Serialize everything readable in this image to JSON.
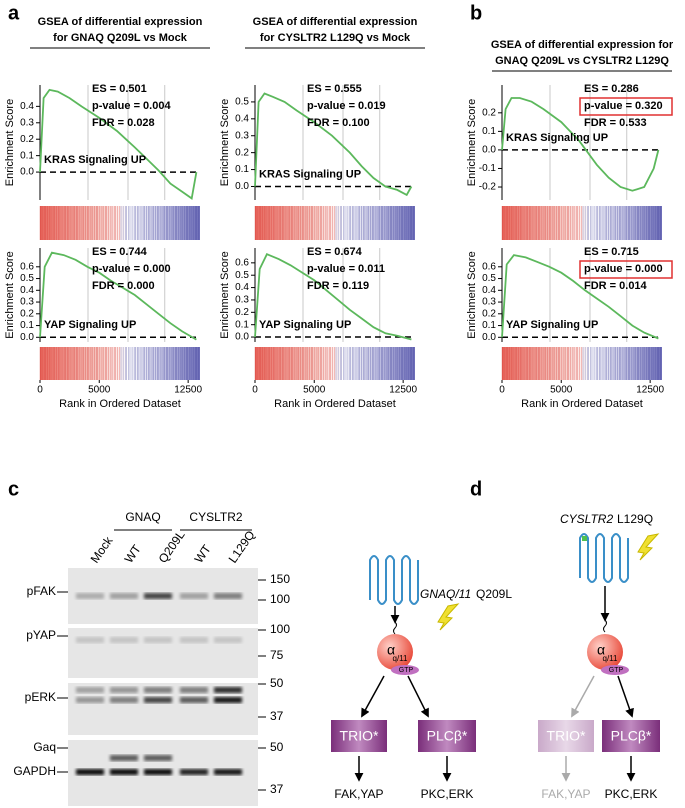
{
  "panel_labels": [
    "a",
    "b",
    "c",
    "d"
  ],
  "chart_data": [
    {
      "type": "line",
      "title": [
        "GSEA of differential expression",
        "for GNAQ Q209L vs Mock"
      ],
      "annotations": [
        "ES = 0.501",
        "p-value = 0.004",
        "FDR = 0.028"
      ],
      "gene_set": "KRAS Signaling UP",
      "y_label": "Enrichment Score",
      "color": "#5cb85c",
      "xlim": [
        0,
        13500
      ],
      "ylim": [
        -0.17,
        0.53
      ],
      "yticks": [
        {
          "value": 0,
          "label": "0.0"
        },
        0.1,
        0.2,
        0.3,
        0.4
      ],
      "x": [
        0,
        300,
        800,
        1500,
        2500,
        3500,
        5000,
        6500,
        8000,
        9000,
        10000,
        11000,
        12000,
        12800,
        13200
      ],
      "values": [
        0,
        0.45,
        0.5,
        0.49,
        0.45,
        0.4,
        0.33,
        0.25,
        0.15,
        0.08,
        0.01,
        -0.07,
        -0.12,
        -0.16,
        0
      ]
    },
    {
      "type": "line",
      "title": [
        "GSEA of differential expression",
        "for CYSLTR2 L129Q vs Mock"
      ],
      "annotations": [
        "ES = 0.555",
        "p-value = 0.019",
        "FDR = 0.100"
      ],
      "gene_set": "KRAS Signaling UP",
      "y_label": "Enrichment Score",
      "color": "#5cb85c",
      "xlim": [
        0,
        13500
      ],
      "ylim": [
        -0.08,
        0.6
      ],
      "yticks": [
        {
          "value": 0,
          "label": "0.0"
        },
        0.1,
        0.2,
        0.3,
        0.4,
        0.5
      ],
      "x": [
        0,
        300,
        800,
        1500,
        2500,
        3500,
        5000,
        6500,
        8000,
        9000,
        10000,
        11000,
        12000,
        12800,
        13200
      ],
      "values": [
        0,
        0.5,
        0.55,
        0.53,
        0.5,
        0.45,
        0.38,
        0.3,
        0.2,
        0.12,
        0.05,
        0,
        -0.02,
        -0.05,
        0
      ]
    },
    {
      "type": "line",
      "title": [
        "GSEA of differential expression for",
        "GNAQ Q209L vs CYSLTR2 L129Q"
      ],
      "annotations": [
        "ES = 0.286",
        "p-value = 0.320",
        "FDR = 0.533"
      ],
      "highlight": 1,
      "gene_set": "KRAS Signaling UP",
      "y_label": "Enrichment Score",
      "color": "#5cb85c",
      "xlim": [
        0,
        13500
      ],
      "ylim": [
        -0.27,
        0.35
      ],
      "yticks": [
        -0.2,
        -0.1,
        {
          "value": 0,
          "label": "0.0"
        },
        0.1,
        0.2
      ],
      "x": [
        0,
        300,
        800,
        1500,
        2500,
        3500,
        5000,
        6500,
        8000,
        9000,
        10000,
        11000,
        12000,
        12800,
        13200
      ],
      "values": [
        0,
        0.22,
        0.28,
        0.28,
        0.26,
        0.22,
        0.15,
        0.05,
        -0.08,
        -0.15,
        -0.2,
        -0.22,
        -0.2,
        -0.1,
        0
      ]
    },
    {
      "type": "line",
      "annotations": [
        "ES = 0.744",
        "p-value = 0.000",
        "FDR = 0.000"
      ],
      "gene_set": "YAP Signaling UP",
      "y_label": "Enrichment Score",
      "x_label": "Rank in Ordered Dataset",
      "color": "#5cb85c",
      "xlim": [
        0,
        13500
      ],
      "ylim": [
        -0.04,
        0.76
      ],
      "xticks": [
        0,
        5000,
        12500
      ],
      "yticks": [
        {
          "value": 0,
          "label": "0.0"
        },
        0.1,
        0.2,
        0.3,
        0.4,
        0.5,
        0.6
      ],
      "x": [
        0,
        400,
        1000,
        2000,
        3000,
        4000,
        5000,
        6000,
        7000,
        8000,
        9000,
        10000,
        11000,
        12000,
        13200
      ],
      "values": [
        0,
        0.6,
        0.72,
        0.7,
        0.66,
        0.6,
        0.55,
        0.48,
        0.42,
        0.36,
        0.28,
        0.2,
        0.12,
        0.05,
        -0.02
      ]
    },
    {
      "type": "line",
      "annotations": [
        "ES = 0.674",
        "p-value = 0.011",
        "FDR = 0.119"
      ],
      "gene_set": "YAP Signaling UP",
      "y_label": "Enrichment Score",
      "x_label": "Rank in Ordered Dataset",
      "color": "#5cb85c",
      "xlim": [
        0,
        13500
      ],
      "ylim": [
        -0.04,
        0.72
      ],
      "xticks": [
        0,
        5000,
        12500
      ],
      "yticks": [
        {
          "value": 0,
          "label": "0.0"
        },
        0.1,
        0.2,
        0.3,
        0.4,
        0.5,
        0.6
      ],
      "x": [
        0,
        400,
        1000,
        2000,
        3000,
        4000,
        5000,
        6000,
        7000,
        8000,
        9000,
        10000,
        11000,
        12000,
        13200
      ],
      "values": [
        0,
        0.55,
        0.67,
        0.63,
        0.58,
        0.52,
        0.46,
        0.38,
        0.3,
        0.22,
        0.15,
        0.08,
        0.03,
        0.01,
        -0.02
      ]
    },
    {
      "type": "line",
      "annotations": [
        "ES = 0.715",
        "p-value = 0.000",
        "FDR = 0.014"
      ],
      "highlight": 1,
      "gene_set": "YAP Signaling UP",
      "y_label": "Enrichment Score",
      "x_label": "Rank in Ordered Dataset",
      "color": "#5cb85c",
      "xlim": [
        0,
        13500
      ],
      "ylim": [
        -0.04,
        0.76
      ],
      "xticks": [
        0,
        5000,
        12500
      ],
      "yticks": [
        {
          "value": 0,
          "label": "0.0"
        },
        0.1,
        0.2,
        0.3,
        0.4,
        0.5,
        0.6
      ],
      "x": [
        0,
        400,
        1000,
        2000,
        3000,
        4000,
        5000,
        6000,
        7000,
        8000,
        9000,
        10000,
        11000,
        12000,
        13200
      ],
      "values": [
        0,
        0.62,
        0.7,
        0.68,
        0.64,
        0.6,
        0.55,
        0.48,
        0.4,
        0.33,
        0.26,
        0.18,
        0.1,
        0.04,
        -0.01
      ]
    }
  ],
  "blot": {
    "groups": [
      "GNAQ",
      "CYSLTR2"
    ],
    "lanes": [
      "Mock",
      "WT",
      "Q209L",
      "WT",
      "L129Q"
    ],
    "rows": [
      {
        "labels": [
          "pFAK"
        ],
        "markers": [
          "150",
          "100"
        ]
      },
      {
        "labels": [
          "pYAP"
        ],
        "markers": [
          "100",
          "75"
        ]
      },
      {
        "labels": [
          "pERK"
        ],
        "markers": [
          "50",
          "37"
        ]
      },
      {
        "labels": [
          "Gaq",
          "GAPDH"
        ],
        "markers": [
          "50",
          "37"
        ]
      }
    ]
  },
  "diagram": {
    "left": {
      "gene": "GNAQ/11",
      "mutation": "Q209L",
      "alpha": "α",
      "subunit": "q/11",
      "gtp": "GTP",
      "nodes": [
        "TRIO*",
        "PLCβ*"
      ],
      "outputs": [
        "FAK,YAP",
        "PKC,ERK"
      ]
    },
    "right": {
      "gene": "CYSLTR2",
      "mutation": "L129Q",
      "alpha": "α",
      "subunit": "q/11",
      "gtp": "GTP",
      "nodes": [
        "TRIO*",
        "PLCβ*"
      ],
      "outputs": [
        "FAK,YAP",
        "PKC,ERK"
      ]
    }
  }
}
